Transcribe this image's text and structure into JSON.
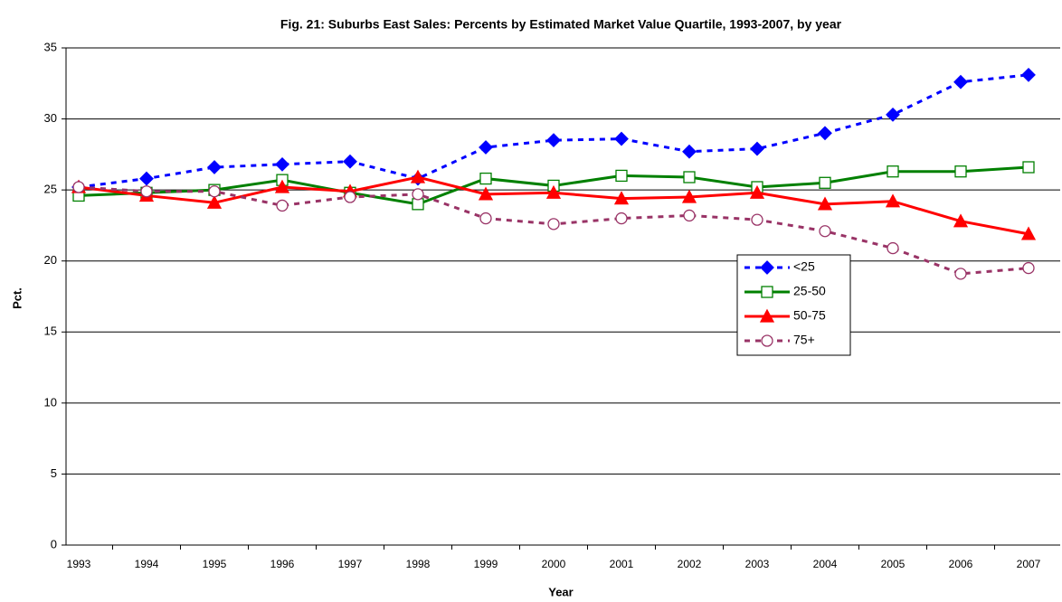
{
  "chart_data": {
    "type": "line",
    "title": "Fig. 21: Suburbs East Sales: Percents by Estimated Market Value Quartile, 1993-2007, by year",
    "x_label": "Year",
    "y_label": "Pct.",
    "categories": [
      "1993",
      "1994",
      "1995",
      "1996",
      "1997",
      "1998",
      "1999",
      "2000",
      "2001",
      "2002",
      "2003",
      "2004",
      "2005",
      "2006",
      "2007"
    ],
    "series": [
      {
        "name": "<25",
        "color": "#0000ff",
        "marker": "diamond",
        "dashed": true,
        "values": [
          25.2,
          25.8,
          26.6,
          26.8,
          27.0,
          25.8,
          28.0,
          28.5,
          28.6,
          27.7,
          27.9,
          29.0,
          30.3,
          32.6,
          33.1
        ]
      },
      {
        "name": "25-50",
        "color": "#008000",
        "marker": "square",
        "dashed": false,
        "values": [
          24.6,
          24.8,
          25.0,
          25.7,
          24.8,
          24.0,
          25.8,
          25.3,
          26.0,
          25.9,
          25.2,
          25.5,
          26.3,
          26.3,
          26.6
        ]
      },
      {
        "name": "50-75",
        "color": "#ff0000",
        "marker": "triangle",
        "dashed": false,
        "values": [
          25.2,
          24.6,
          24.1,
          25.2,
          24.9,
          25.9,
          24.7,
          24.8,
          24.4,
          24.5,
          24.8,
          24.0,
          24.2,
          22.8,
          21.9
        ]
      },
      {
        "name": "75+",
        "color": "#993366",
        "marker": "circle",
        "dashed": true,
        "values": [
          25.2,
          24.9,
          24.9,
          23.9,
          24.5,
          24.7,
          23.0,
          22.6,
          23.0,
          23.2,
          22.9,
          22.1,
          20.9,
          19.1,
          19.5
        ]
      }
    ],
    "ylim": [
      0,
      35
    ],
    "yticks": [
      0,
      5,
      10,
      15,
      20,
      25,
      30,
      35
    ],
    "grid": true
  }
}
